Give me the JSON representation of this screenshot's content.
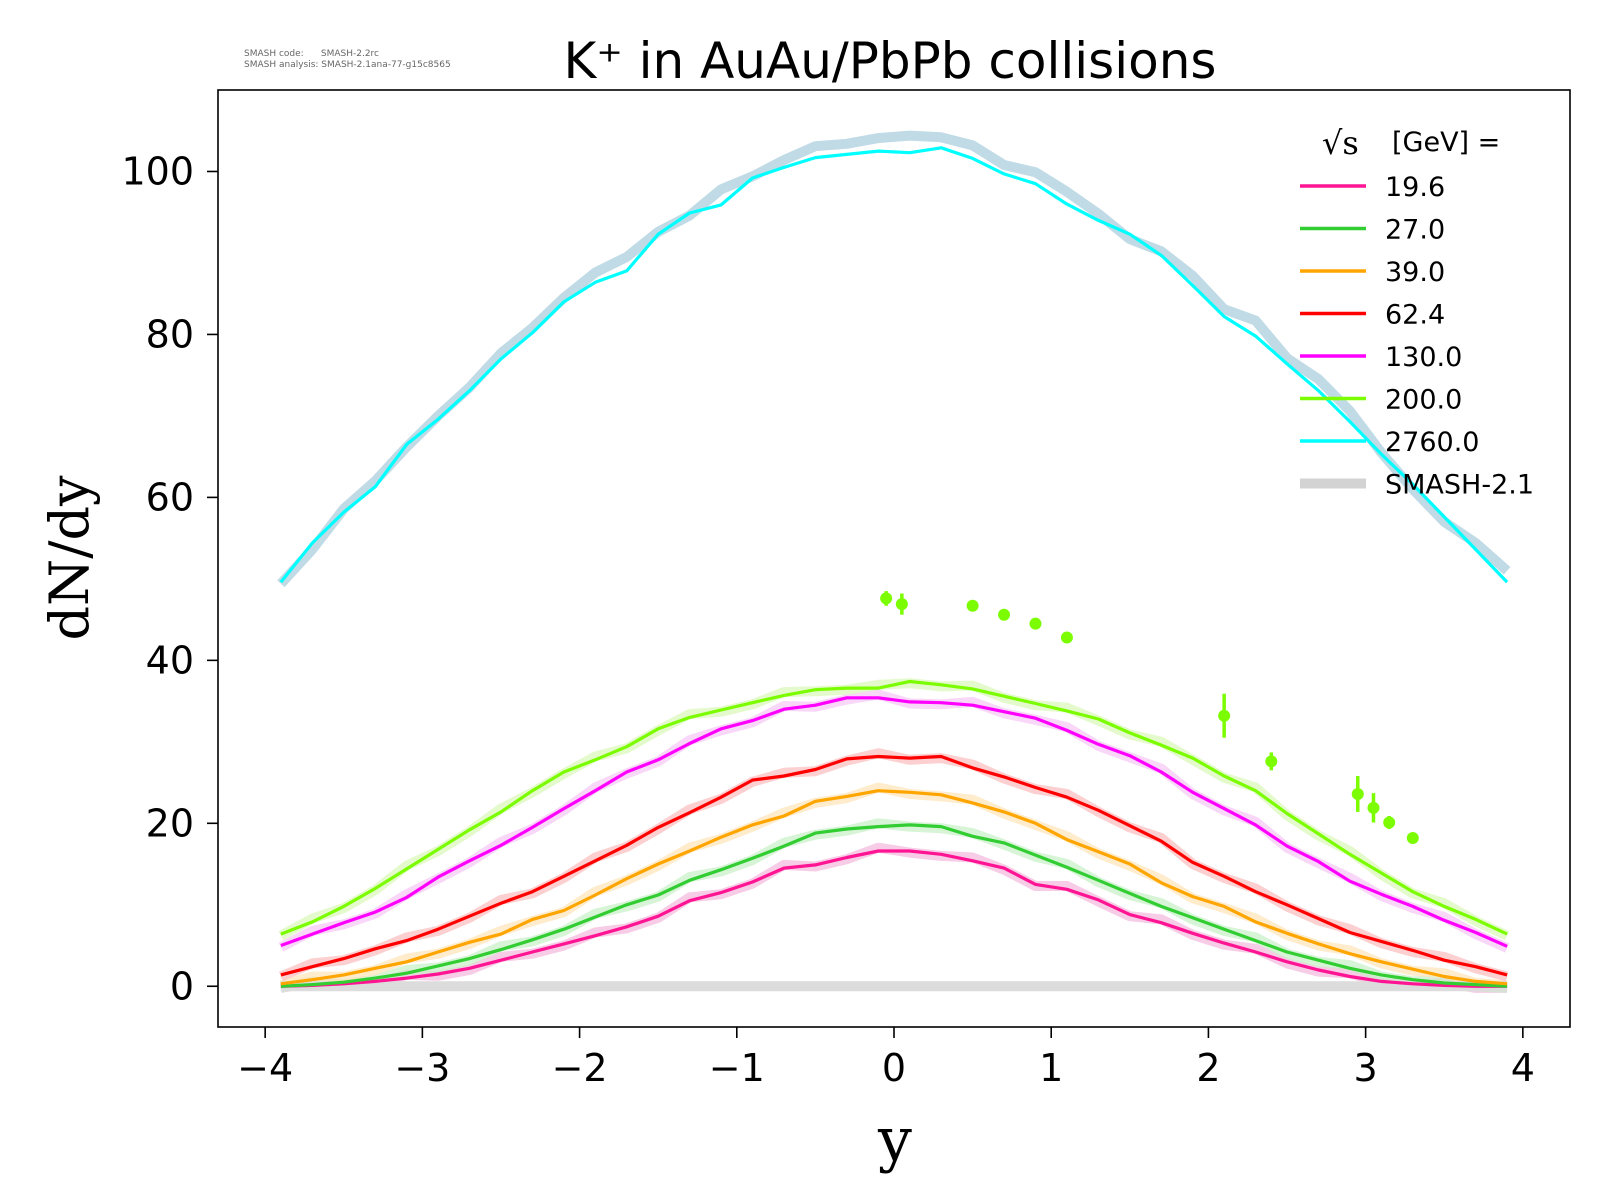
{
  "meta": {
    "code_line": "SMASH code:      SMASH-2.2rc",
    "analysis_line": "SMASH analysis: SMASH-2.1ana-77-g15c8565"
  },
  "chart_data": {
    "type": "line",
    "title": "K⁺ in AuAu/PbPb collisions",
    "xlabel": "y",
    "ylabel": "dN/dy",
    "xlim": [
      -4.3,
      4.3
    ],
    "ylim": [
      -5,
      110
    ],
    "xticks": [
      -4,
      -3,
      -2,
      -1,
      0,
      1,
      2,
      3,
      4
    ],
    "xtick_labels": [
      "−4",
      "−3",
      "−2",
      "−1",
      "0",
      "1",
      "2",
      "3",
      "4"
    ],
    "yticks": [
      0,
      20,
      40,
      60,
      80,
      100
    ],
    "ytick_labels": [
      "0",
      "20",
      "40",
      "60",
      "80",
      "100"
    ],
    "grid": false,
    "legend": {
      "placement": "top-right",
      "title_prefix": "√s",
      "title_suffix": "[GeV] =",
      "reference_label": "SMASH-2.1",
      "reference_color": "#d3d3d3"
    },
    "x": [
      -3.9,
      -3.7,
      -3.5,
      -3.3,
      -3.1,
      -2.9,
      -2.7,
      -2.5,
      -2.3,
      -2.1,
      -1.9,
      -1.7,
      -1.5,
      -1.3,
      -1.1,
      -0.9,
      -0.7,
      -0.5,
      -0.3,
      -0.1,
      0.1,
      0.3,
      0.5,
      0.7,
      0.9,
      1.1,
      1.3,
      1.5,
      1.7,
      1.9,
      2.1,
      2.3,
      2.5,
      2.7,
      2.9,
      3.1,
      3.3,
      3.5,
      3.7,
      3.9
    ],
    "series": [
      {
        "name": "19.6",
        "color": "#ff1493",
        "reference_color": "#f4b6dc",
        "values": [
          0.0,
          0.1,
          0.3,
          0.6,
          1.0,
          1.5,
          2.2,
          3.2,
          4.2,
          5.2,
          6.2,
          7.3,
          8.6,
          10.5,
          11.5,
          12.8,
          14.5,
          14.9,
          15.8,
          16.6,
          16.6,
          16.2,
          15.4,
          14.5,
          12.5,
          11.9,
          10.6,
          8.8,
          7.8,
          6.5,
          5.3,
          4.2,
          3.0,
          2.0,
          1.2,
          0.6,
          0.3,
          0.1,
          0.0,
          0.0
        ]
      },
      {
        "name": "27.0",
        "color": "#32cd32",
        "reference_color": "#c6efc6",
        "values": [
          0.0,
          0.2,
          0.5,
          1.0,
          1.6,
          2.5,
          3.4,
          4.5,
          5.7,
          7.0,
          8.5,
          10.0,
          11.2,
          13.0,
          14.3,
          15.7,
          17.2,
          18.8,
          19.3,
          19.6,
          19.8,
          19.6,
          18.4,
          17.6,
          16.1,
          14.6,
          13.0,
          11.4,
          9.8,
          8.4,
          7.0,
          5.6,
          4.2,
          3.2,
          2.2,
          1.4,
          0.8,
          0.4,
          0.2,
          0.0
        ]
      },
      {
        "name": "39.0",
        "color": "#ffa500",
        "reference_color": "#fde4b8",
        "values": [
          0.3,
          0.8,
          1.4,
          2.2,
          3.0,
          4.2,
          5.4,
          6.4,
          8.2,
          9.3,
          11.2,
          13.2,
          15.0,
          16.6,
          18.3,
          19.8,
          20.9,
          22.7,
          23.3,
          24.0,
          23.8,
          23.5,
          22.5,
          21.4,
          20.0,
          18.0,
          16.5,
          15.0,
          12.7,
          11.0,
          9.8,
          7.9,
          6.5,
          5.2,
          4.0,
          3.0,
          2.1,
          1.2,
          0.6,
          0.3
        ]
      },
      {
        "name": "62.4",
        "color": "#ff0000",
        "reference_color": "#fbbcbc",
        "values": [
          1.4,
          2.4,
          3.4,
          4.6,
          5.6,
          7.0,
          8.6,
          10.2,
          11.6,
          13.5,
          15.4,
          17.3,
          19.5,
          21.3,
          23.2,
          25.3,
          25.8,
          26.6,
          27.9,
          28.2,
          28.0,
          28.2,
          26.8,
          25.7,
          24.4,
          23.2,
          21.6,
          19.7,
          17.8,
          15.2,
          13.5,
          11.6,
          10.0,
          8.3,
          6.6,
          5.5,
          4.4,
          3.2,
          2.4,
          1.4
        ]
      },
      {
        "name": "130.0",
        "color": "#ff00ff",
        "reference_color": "#f5c6f5",
        "values": [
          5.0,
          6.4,
          7.8,
          9.1,
          10.9,
          13.4,
          15.4,
          17.3,
          19.5,
          21.8,
          24.0,
          26.3,
          27.8,
          29.8,
          31.6,
          32.6,
          34.0,
          34.5,
          35.4,
          35.4,
          34.9,
          34.8,
          34.5,
          33.7,
          32.9,
          31.4,
          29.7,
          28.3,
          26.3,
          23.8,
          21.8,
          19.8,
          17.2,
          15.3,
          12.9,
          11.3,
          9.8,
          8.1,
          6.6,
          4.9
        ]
      },
      {
        "name": "200.0",
        "color": "#7cfc00",
        "reference_color": "#d8f8b8",
        "values": [
          6.4,
          7.9,
          9.8,
          12.0,
          14.4,
          16.8,
          19.2,
          21.4,
          24.0,
          26.3,
          27.8,
          29.4,
          31.6,
          33.0,
          33.9,
          34.8,
          35.7,
          36.4,
          36.6,
          36.6,
          37.4,
          37.0,
          36.5,
          35.6,
          34.7,
          33.8,
          32.8,
          31.1,
          29.6,
          28.0,
          25.8,
          24.0,
          21.2,
          18.7,
          16.2,
          13.9,
          11.6,
          9.8,
          8.2,
          6.4
        ]
      },
      {
        "name": "2760.0",
        "color": "#00ffff",
        "reference_color": "#c0dbe6",
        "values": [
          49.6,
          54.4,
          58.2,
          61.3,
          66.5,
          69.6,
          73.1,
          77.0,
          80.2,
          84.0,
          86.4,
          87.8,
          92.3,
          94.9,
          95.9,
          99.2,
          100.5,
          101.7,
          102.1,
          102.5,
          102.3,
          102.9,
          101.6,
          99.7,
          98.5,
          96.0,
          94.0,
          92.3,
          89.7,
          86.0,
          82.2,
          79.8,
          76.4,
          73.1,
          69.3,
          65.3,
          61.6,
          57.6,
          53.6,
          49.6
        ]
      }
    ],
    "reference_series": [
      {
        "name": "SMASH-2.1 (2760.0)",
        "color": "#c0dbe6",
        "values": [
          49.4,
          53.6,
          58.6,
          62.0,
          66.2,
          70.0,
          73.5,
          77.7,
          80.8,
          84.5,
          87.6,
          89.5,
          92.6,
          94.6,
          97.8,
          99.4,
          101.4,
          103.1,
          103.4,
          104.1,
          104.4,
          104.2,
          103.2,
          100.8,
          99.9,
          97.5,
          94.8,
          91.7,
          90.2,
          87.2,
          83.1,
          81.7,
          77.1,
          74.5,
          70.6,
          65.5,
          61.0,
          57.0,
          54.4,
          51.0
        ]
      }
    ],
    "experimental_points": {
      "color": "#7cfc00",
      "points": [
        {
          "x": -0.05,
          "y": 47.6,
          "err": 0.9
        },
        {
          "x": 0.05,
          "y": 46.9,
          "err": 1.3
        },
        {
          "x": 0.5,
          "y": 46.7,
          "err": 0.5
        },
        {
          "x": 0.7,
          "y": 45.6,
          "err": 0.5
        },
        {
          "x": 0.9,
          "y": 44.5,
          "err": 0.5
        },
        {
          "x": 1.1,
          "y": 42.8,
          "err": 0.5
        },
        {
          "x": 2.1,
          "y": 33.2,
          "err": 2.7
        },
        {
          "x": 2.4,
          "y": 27.6,
          "err": 1.1
        },
        {
          "x": 2.95,
          "y": 23.6,
          "err": 2.2
        },
        {
          "x": 3.05,
          "y": 21.9,
          "err": 1.8
        },
        {
          "x": 3.15,
          "y": 20.1,
          "err": 0.8
        },
        {
          "x": 3.3,
          "y": 18.2,
          "err": 0.6
        }
      ]
    }
  }
}
